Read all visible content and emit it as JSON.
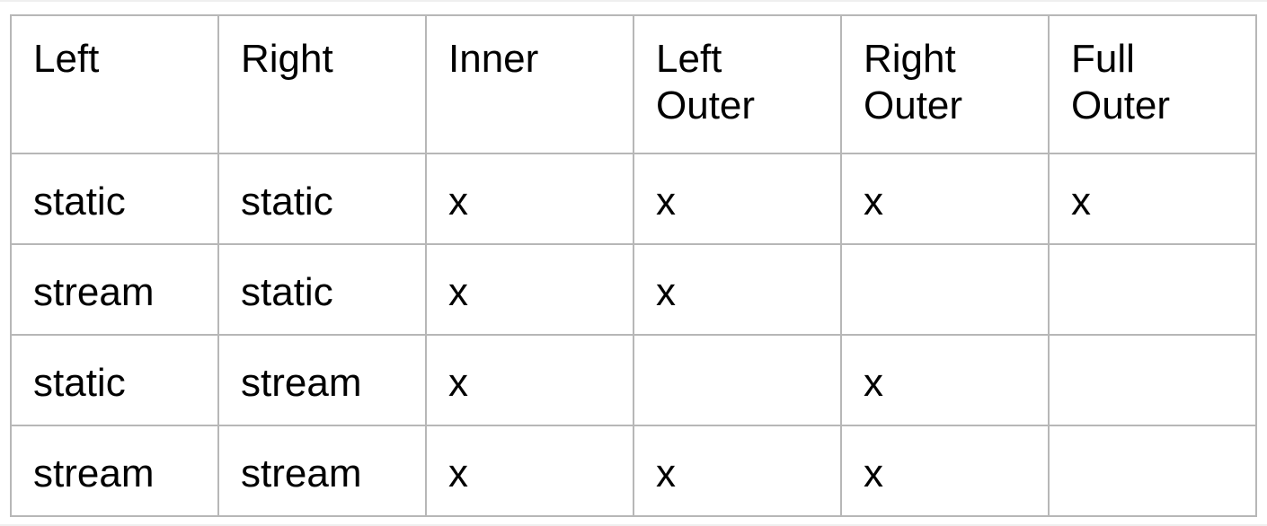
{
  "table": {
    "headers": [
      "Left",
      "Right",
      "Inner",
      "Left\nOuter",
      "Right\nOuter",
      "Full\nOuter"
    ],
    "rows": [
      [
        "static",
        "static",
        "x",
        "x",
        "x",
        "x"
      ],
      [
        "stream",
        "static",
        "x",
        "x",
        "",
        ""
      ],
      [
        "static",
        "stream",
        "x",
        "",
        "x",
        ""
      ],
      [
        "stream",
        "stream",
        "x",
        "x",
        "x",
        ""
      ]
    ]
  }
}
